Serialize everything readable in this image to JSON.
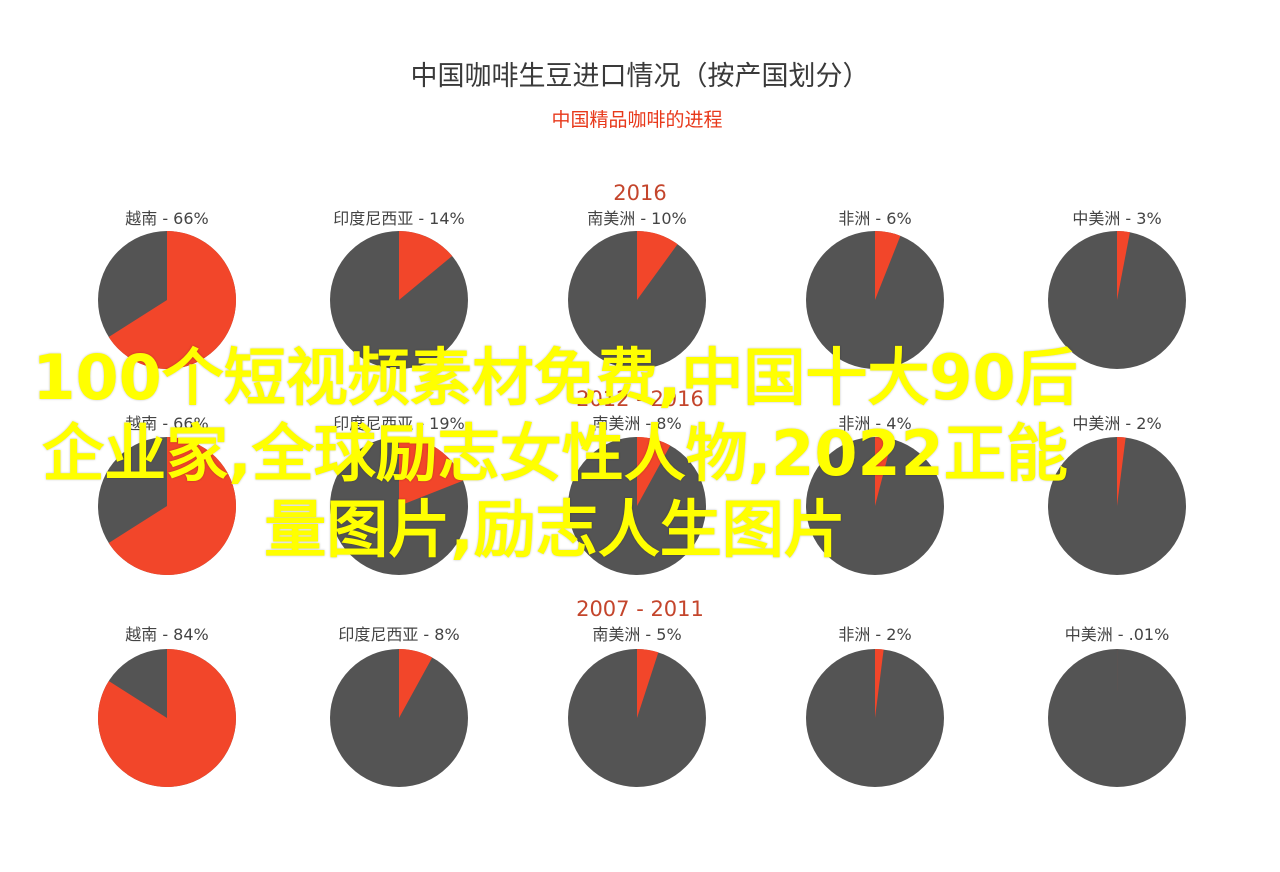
{
  "chart_data": {
    "type": "pie",
    "title": "中国咖啡生豆进口情况（按产国划分）",
    "subtitle": "中国精品咖啡的进程",
    "colors": {
      "share": "#f2462a",
      "rest": "#545454"
    },
    "groups": [
      {
        "period": "2016",
        "pies": [
          {
            "country": "越南",
            "label": "越南 - 66%",
            "value": 66
          },
          {
            "country": "印度尼西亚",
            "label": "印度尼西亚 - 14%",
            "value": 14
          },
          {
            "country": "南美洲",
            "label": "南美洲 - 10%",
            "value": 10
          },
          {
            "country": "非洲",
            "label": "非洲 - 6%",
            "value": 6
          },
          {
            "country": "中美洲",
            "label": "中美洲 - 3%",
            "value": 3
          }
        ]
      },
      {
        "period": "2012 - 2016",
        "pies": [
          {
            "country": "越南",
            "label": "越南 - 66%",
            "value": 66
          },
          {
            "country": "印度尼西亚",
            "label": "印度尼西亚 - 19%",
            "value": 19
          },
          {
            "country": "南美洲",
            "label": "南美洲 - 8%",
            "value": 8
          },
          {
            "country": "非洲",
            "label": "非洲 - 4%",
            "value": 4
          },
          {
            "country": "中美洲",
            "label": "中美洲 - 2%",
            "value": 2
          }
        ]
      },
      {
        "period": "2007 - 2011",
        "pies": [
          {
            "country": "越南",
            "label": "越南 - 84%",
            "value": 84
          },
          {
            "country": "印度尼西亚",
            "label": "印度尼西亚 - 8%",
            "value": 8
          },
          {
            "country": "南美洲",
            "label": "南美洲 - 5%",
            "value": 5
          },
          {
            "country": "非洲",
            "label": "非洲 - 2%",
            "value": 2
          },
          {
            "country": "中美洲",
            "label": "中美洲 - .01%",
            "value": 0.01
          }
        ]
      }
    ]
  },
  "overlay_text": "100个短视频素材免费,中国十大90后企业家,全球励志女性人物,2022正能量图片,励志人生图片"
}
